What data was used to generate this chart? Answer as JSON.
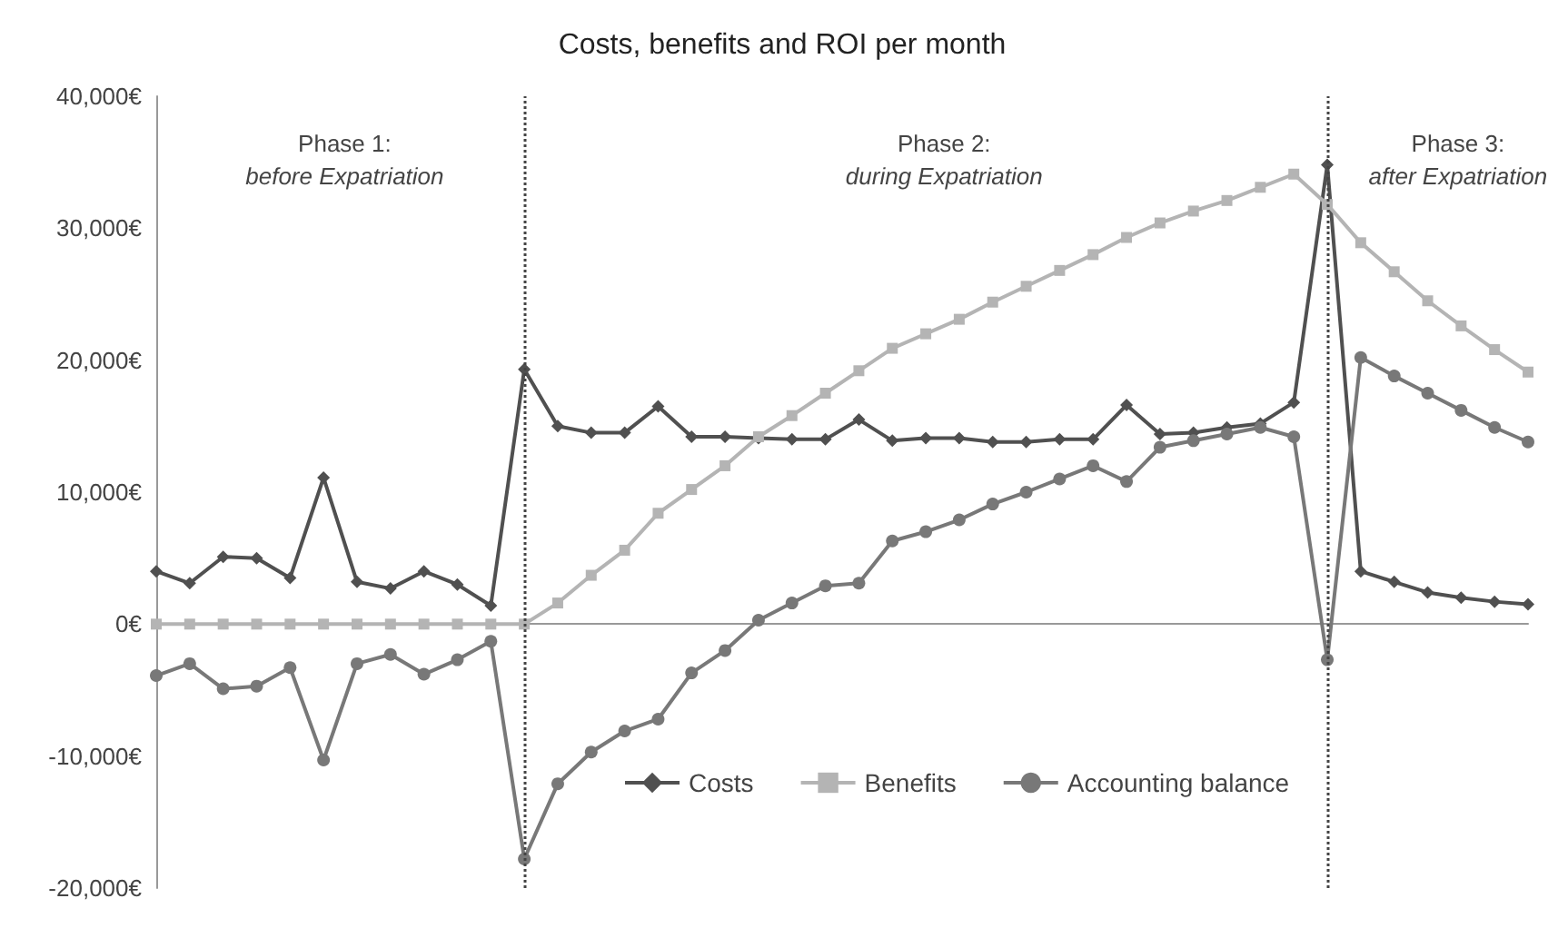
{
  "chart_data": {
    "type": "line",
    "title": "Costs, benefits and ROI per month",
    "categories": [
      null,
      null,
      null,
      null,
      null,
      null,
      null,
      null,
      null,
      null,
      null,
      null,
      null,
      null,
      null,
      null,
      null,
      null,
      null,
      null,
      null,
      null,
      null,
      null,
      null,
      null,
      null,
      null,
      null,
      null,
      null,
      null,
      null,
      null,
      null,
      null,
      null,
      null,
      null,
      null,
      null,
      null
    ],
    "series": [
      {
        "name": "Costs",
        "color": "#505050",
        "marker": "diamond",
        "values": [
          4000,
          3100,
          5100,
          5000,
          3500,
          11100,
          3200,
          2700,
          4000,
          3000,
          1400,
          19300,
          15000,
          14500,
          14500,
          16500,
          14200,
          14200,
          14100,
          14000,
          14000,
          15500,
          13900,
          14100,
          14100,
          13800,
          13800,
          14000,
          14000,
          16600,
          14400,
          14500,
          14900,
          15200,
          16800,
          34800,
          4000,
          3200,
          2400,
          2000,
          1700,
          1500
        ]
      },
      {
        "name": "Benefits",
        "color": "#b4b4b4",
        "marker": "square",
        "values": [
          0,
          0,
          0,
          0,
          0,
          0,
          0,
          0,
          0,
          0,
          0,
          0,
          1600,
          3700,
          5600,
          8400,
          10200,
          12000,
          14200,
          15800,
          17500,
          19200,
          20900,
          22000,
          23100,
          24400,
          25600,
          26800,
          28000,
          29300,
          30400,
          31300,
          32100,
          33100,
          34100,
          31800,
          28900,
          26700,
          24500,
          22600,
          20800,
          19100
        ]
      },
      {
        "name": "Accounting balance",
        "color": "#787878",
        "marker": "circle",
        "values": [
          -3900,
          -3000,
          -4900,
          -4700,
          -3300,
          -10300,
          -3000,
          -2300,
          -3800,
          -2700,
          -1300,
          -17800,
          -12100,
          -9700,
          -8100,
          -7200,
          -3700,
          -2000,
          300,
          1600,
          2900,
          3100,
          6300,
          7000,
          7900,
          9100,
          10000,
          11000,
          12000,
          10800,
          13400,
          13900,
          14400,
          14900,
          14200,
          -2700,
          20200,
          18800,
          17500,
          16200,
          14900,
          13800
        ]
      }
    ],
    "ylim": [
      -20000,
      40000
    ],
    "yticks": [
      {
        "value": -20000,
        "label": "-20,000€"
      },
      {
        "value": -10000,
        "label": "-10,000€"
      },
      {
        "value": 0,
        "label": "0€"
      },
      {
        "value": 10000,
        "label": "10,000€"
      },
      {
        "value": 20000,
        "label": "20,000€"
      },
      {
        "value": 30000,
        "label": "30,000€"
      },
      {
        "value": 40000,
        "label": "40,000€"
      }
    ],
    "annotations": [
      "Phase 1:\nbefore Expatriation",
      "Phase 2:\nduring Expatriation",
      "Phase 3:\nafter Expatriation"
    ],
    "legend": "bottom",
    "grid": false,
    "tick_labels": "y"
  }
}
